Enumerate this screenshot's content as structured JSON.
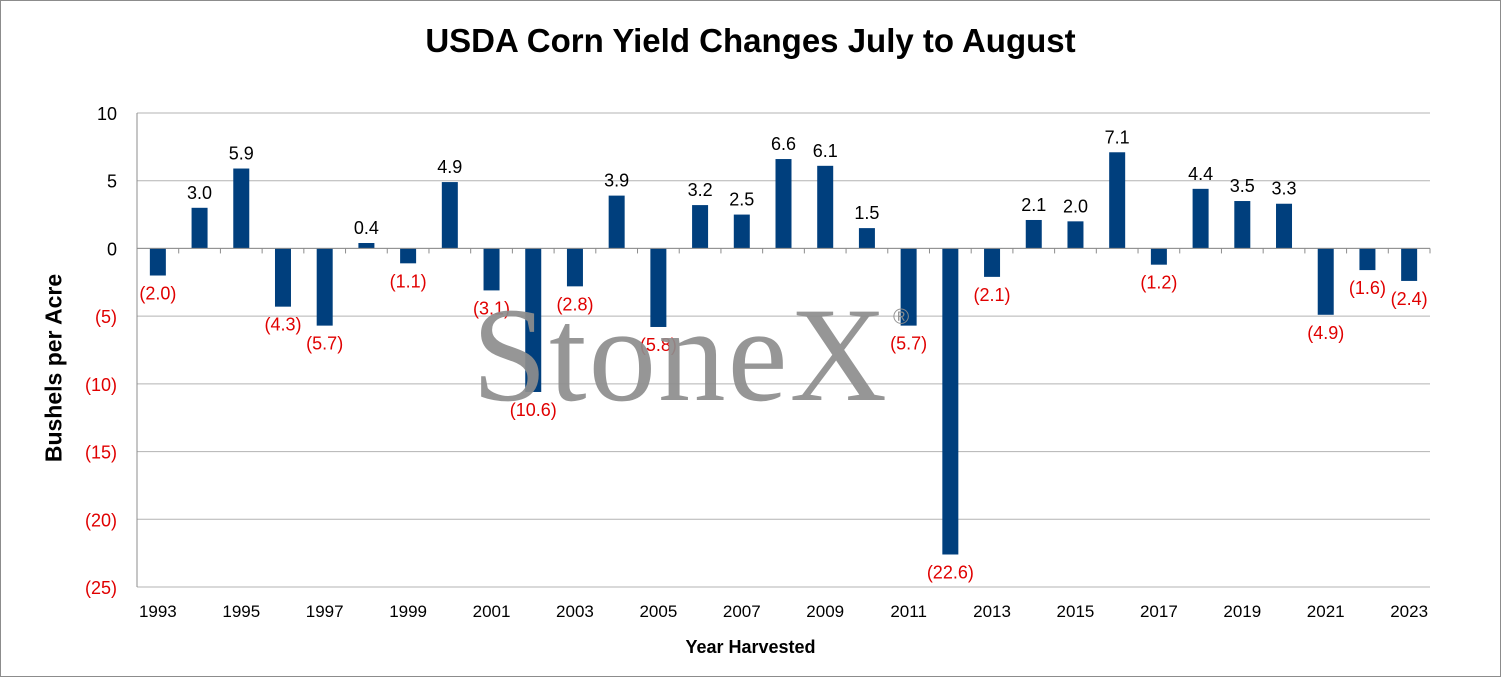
{
  "colors": {
    "bar": "#003f7d",
    "negative_label": "#e00000",
    "positive_label": "#000000",
    "grid": "#b3b3b3",
    "watermark": "#8e8e8e"
  },
  "watermark": {
    "text": "StoneX",
    "mark": "®"
  },
  "chart_data": {
    "type": "bar",
    "title": "USDA Corn Yield Changes July to August",
    "xlabel": "Year Harvested",
    "ylabel": "Bushels per Acre",
    "ylim": [
      -25,
      10
    ],
    "yticks": [
      10,
      5,
      0,
      -5,
      -10,
      -15,
      -20,
      -25
    ],
    "ytick_labels": [
      "10",
      "5",
      "0",
      "(5)",
      "(10)",
      "(15)",
      "(20)",
      "(25)"
    ],
    "grid": true,
    "categories": [
      "1993",
      "1994",
      "1995",
      "1996",
      "1997",
      "1998",
      "1999",
      "2000",
      "2001",
      "2002",
      "2003",
      "2004",
      "2005",
      "2006",
      "2007",
      "2008",
      "2009",
      "2010",
      "2011",
      "2012",
      "2013",
      "2014",
      "2015",
      "2016",
      "2017",
      "2018",
      "2019",
      "2020",
      "2021",
      "2022",
      "2023"
    ],
    "xtick_labels": [
      "1993",
      "",
      "1995",
      "",
      "1997",
      "",
      "1999",
      "",
      "2001",
      "",
      "2003",
      "",
      "2005",
      "",
      "2007",
      "",
      "2009",
      "",
      "2011",
      "",
      "2013",
      "",
      "2015",
      "",
      "2017",
      "",
      "2019",
      "",
      "2021",
      "",
      "2023"
    ],
    "values": [
      -2.0,
      3.0,
      5.9,
      -4.3,
      -5.7,
      0.4,
      -1.1,
      4.9,
      -3.1,
      -10.6,
      -2.8,
      3.9,
      -5.8,
      3.2,
      2.5,
      6.6,
      6.1,
      1.5,
      -5.7,
      -22.6,
      -2.1,
      2.1,
      2.0,
      7.1,
      -1.2,
      4.4,
      3.5,
      3.3,
      -4.9,
      -1.6,
      -2.4
    ],
    "data_labels": [
      "(2.0)",
      "3.0",
      "5.9",
      "(4.3)",
      "(5.7)",
      "0.4",
      "(1.1)",
      "4.9",
      "(3.1)",
      "(10.6)",
      "(2.8)",
      "3.9",
      "(5.8)",
      "3.2",
      "2.5",
      "6.6",
      "6.1",
      "1.5",
      "(5.7)",
      "(22.6)",
      "(2.1)",
      "2.1",
      "2.0",
      "7.1",
      "(1.2)",
      "4.4",
      "3.5",
      "3.3",
      "(4.9)",
      "(1.6)",
      "(2.4)"
    ]
  }
}
